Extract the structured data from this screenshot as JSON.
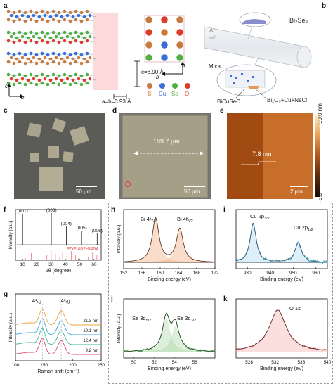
{
  "panel_labels": {
    "a": "a",
    "b": "b",
    "c": "c",
    "d": "d",
    "e": "e",
    "f": "f",
    "g": "g",
    "h": "h",
    "i": "i",
    "j": "j",
    "k": "k"
  },
  "panel_a": {
    "axis_c": "c",
    "axis_b": "b",
    "axis_a": "a",
    "axis_b2": "b",
    "c_dim": "c=8.90 Å",
    "ab_dim": "a=b=3.93 Å",
    "legend": [
      {
        "label": "Bi",
        "color": "#c87a3c"
      },
      {
        "label": "Cu",
        "color": "#3a6fd8"
      },
      {
        "label": "Se",
        "color": "#52b043"
      },
      {
        "label": "O",
        "color": "#e03a2a"
      }
    ]
  },
  "panel_b": {
    "ar": "Ar",
    "source": "Bi₂Se₃",
    "mica": "Mica",
    "product": "BiCuSeO",
    "precursor": "Bi₂O₃+Cu+NaCl"
  },
  "panel_c": {
    "scale": "50 µm"
  },
  "panel_d": {
    "width": "189.7 µm",
    "scale": "50 µm"
  },
  "panel_e": {
    "height": "7.8 nm",
    "scale": "2 µm",
    "cb_max": "10.0 nm",
    "cb_min": "-5.0"
  },
  "chart_data": [
    {
      "type": "line",
      "panel": "f",
      "xlabel": "2θ (degree)",
      "ylabel": "Intensity (a.u.)",
      "xlim": [
        5,
        65
      ],
      "xticks": [
        "10",
        "20",
        "30",
        "40",
        "50",
        "60"
      ],
      "peaks": [
        {
          "x": 10.0,
          "label": "(001)"
        },
        {
          "x": 30.1,
          "label": "(003)"
        },
        {
          "x": 40.6,
          "label": "(004)"
        },
        {
          "x": 51.3,
          "label": "(005)"
        },
        {
          "x": 62.2,
          "label": "(006)"
        }
      ],
      "reference": "PDF #82-0464"
    },
    {
      "type": "line",
      "panel": "g",
      "xlabel": "Raman shift (cm⁻¹)",
      "ylabel": "Intensity (a.u.)",
      "xlim": [
        100,
        250
      ],
      "xticks": [
        "100",
        "150",
        "200",
        "250"
      ],
      "peaks": [
        {
          "x": 147,
          "label": "A¹₁g"
        },
        {
          "x": 180,
          "label": "A²₁g"
        }
      ],
      "series": [
        {
          "name": "21.3 nm",
          "color": "#e8a23a"
        },
        {
          "name": "19.1 nm",
          "color": "#3aa6d8"
        },
        {
          "name": "12.4 nm",
          "color": "#2fb59a"
        },
        {
          "name": "9.2 nm",
          "color": "#e04a6a"
        }
      ]
    },
    {
      "type": "line",
      "panel": "h",
      "xlabel": "Binding energy (eV)",
      "ylabel": "Intenstiy (a.u.)",
      "xlim": [
        152,
        172
      ],
      "xticks": [
        "152",
        "156",
        "160",
        "164",
        "168",
        "172"
      ],
      "peaks": [
        {
          "x": 159.0,
          "label": "Bi 4f7/2"
        },
        {
          "x": 164.3,
          "label": "Bi 4f5/2"
        }
      ]
    },
    {
      "type": "line",
      "panel": "i",
      "xlabel": "Binding energy (eV)",
      "xlim": [
        925,
        965
      ],
      "xticks": [
        "930",
        "940",
        "950",
        "960"
      ],
      "peaks": [
        {
          "x": 932.5,
          "label": "Cu 2p3/2"
        },
        {
          "x": 952.3,
          "label": "Cu 2p1/2"
        }
      ]
    },
    {
      "type": "line",
      "panel": "j",
      "xlabel": "Binding energy (eV)",
      "ylabel": "Intensity (a.u.)",
      "xlim": [
        49,
        58
      ],
      "xticks": [
        "50",
        "52",
        "54",
        "56"
      ],
      "peaks": [
        {
          "x": 53.2,
          "label": "Se 3d5/2"
        },
        {
          "x": 54.1,
          "label": "Se 3d3/2"
        }
      ]
    },
    {
      "type": "line",
      "panel": "k",
      "xlabel": "Binding energy (eV)",
      "xlim": [
        526,
        540
      ],
      "xticks": [
        "528",
        "532",
        "536",
        "540"
      ],
      "peaks": [
        {
          "x": 532.4,
          "label": "O 1s"
        }
      ]
    }
  ]
}
